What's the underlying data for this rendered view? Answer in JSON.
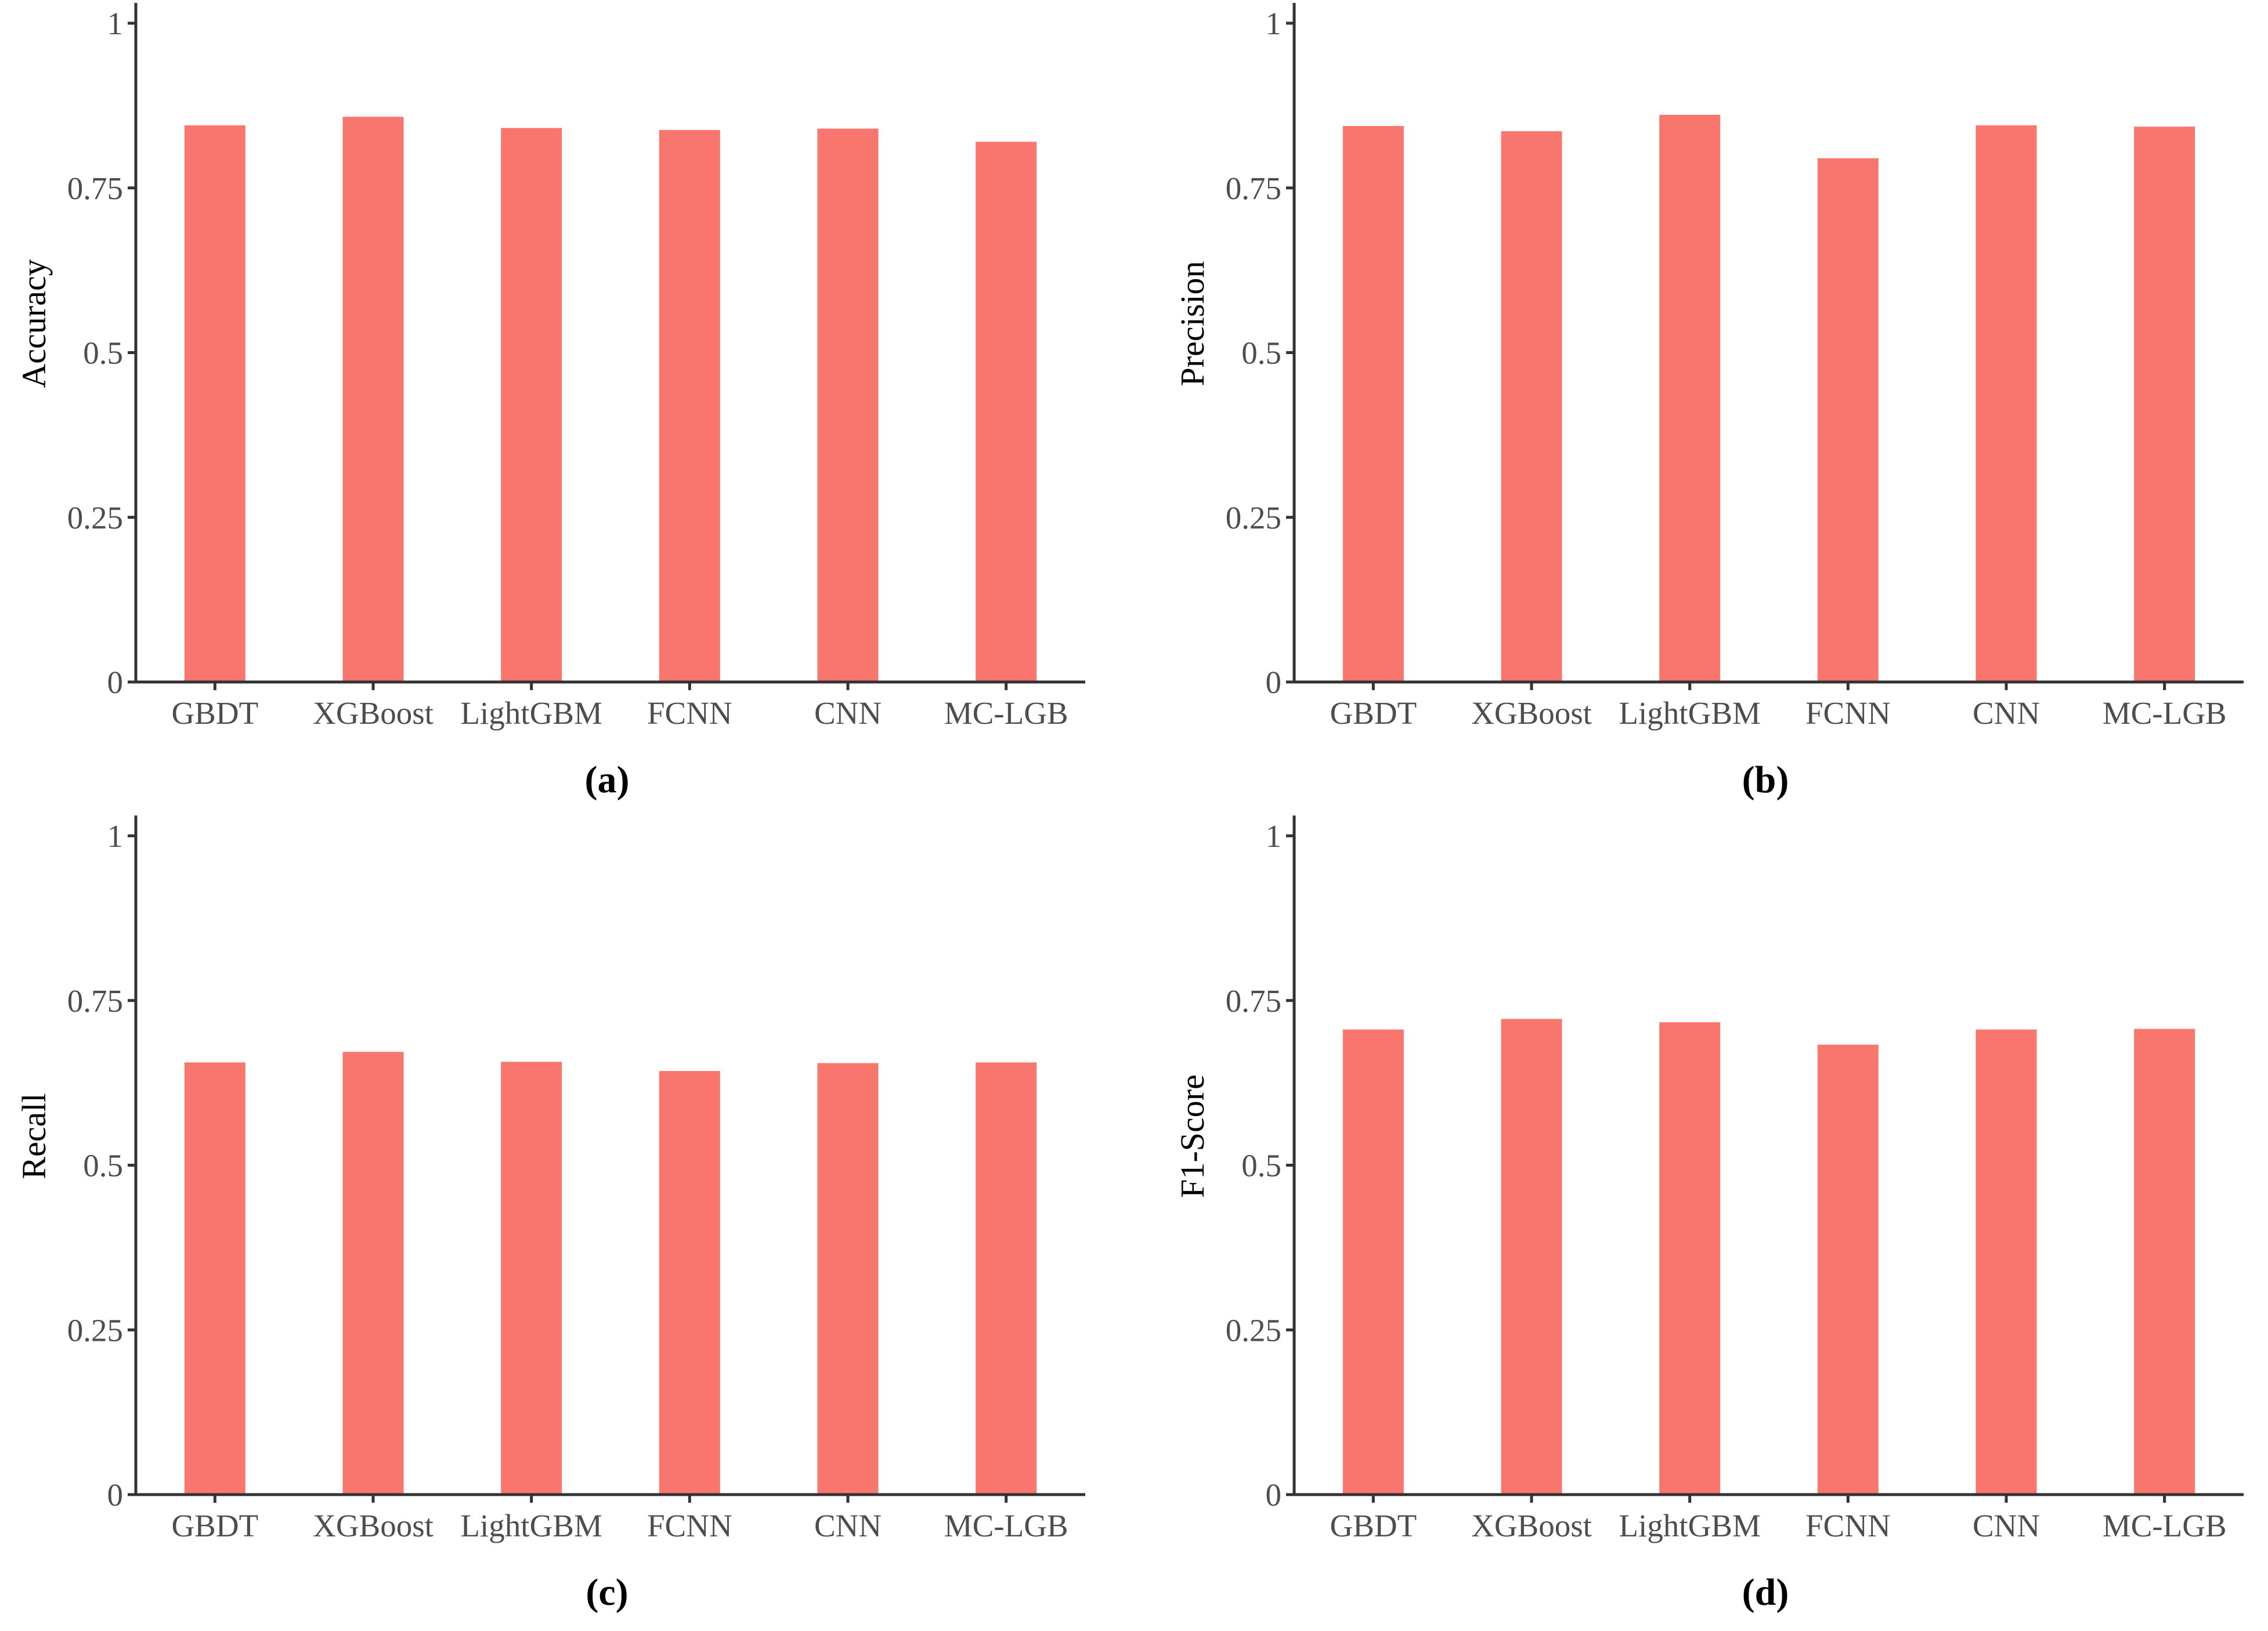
{
  "colors": {
    "bar": "#f8766d",
    "axis": "#333333",
    "tick_text": "#4d4d4d"
  },
  "chart_data": [
    {
      "type": "bar",
      "panel_label": "(a)",
      "ylabel": "Accuracy",
      "xlabel": "",
      "categories": [
        "GBDT",
        "XGBoost",
        "LightGBM",
        "FCNN",
        "CNN",
        "MC-LGB"
      ],
      "values": [
        0.845,
        0.858,
        0.841,
        0.838,
        0.84,
        0.82
      ],
      "ylim": [
        0,
        1
      ],
      "yticks": [
        0,
        0.25,
        0.5,
        0.75,
        1
      ],
      "ytick_labels": [
        "0",
        "0.25",
        "0.5",
        "0.75",
        "1"
      ],
      "grid": false,
      "legend": "none"
    },
    {
      "type": "bar",
      "panel_label": "(b)",
      "ylabel": "Precision",
      "xlabel": "",
      "categories": [
        "GBDT",
        "XGBoost",
        "LightGBM",
        "FCNN",
        "CNN",
        "MC-LGB"
      ],
      "values": [
        0.844,
        0.836,
        0.861,
        0.795,
        0.845,
        0.843
      ],
      "ylim": [
        0,
        1
      ],
      "yticks": [
        0,
        0.25,
        0.5,
        0.75,
        1
      ],
      "ytick_labels": [
        "0",
        "0.25",
        "0.5",
        "0.75",
        "1"
      ],
      "grid": false,
      "legend": "none"
    },
    {
      "type": "bar",
      "panel_label": "(c)",
      "ylabel": "Recall",
      "xlabel": "",
      "categories": [
        "GBDT",
        "XGBoost",
        "LightGBM",
        "FCNN",
        "CNN",
        "MC-LGB"
      ],
      "values": [
        0.656,
        0.672,
        0.657,
        0.643,
        0.655,
        0.656
      ],
      "ylim": [
        0,
        1
      ],
      "yticks": [
        0,
        0.25,
        0.5,
        0.75,
        1
      ],
      "ytick_labels": [
        "0",
        "0.25",
        "0.5",
        "0.75",
        "1"
      ],
      "grid": false,
      "legend": "none"
    },
    {
      "type": "bar",
      "panel_label": "(d)",
      "ylabel": "F1-Score",
      "xlabel": "",
      "categories": [
        "GBDT",
        "XGBoost",
        "LightGBM",
        "FCNN",
        "CNN",
        "MC-LGB"
      ],
      "values": [
        0.706,
        0.722,
        0.717,
        0.683,
        0.706,
        0.707
      ],
      "ylim": [
        0,
        1
      ],
      "yticks": [
        0,
        0.25,
        0.5,
        0.75,
        1
      ],
      "ytick_labels": [
        "0",
        "0.25",
        "0.5",
        "0.75",
        "1"
      ],
      "grid": false,
      "legend": "none"
    }
  ]
}
